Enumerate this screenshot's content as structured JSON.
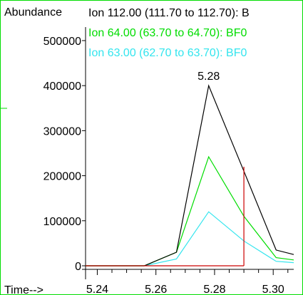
{
  "chart_data": {
    "type": "line",
    "ylabel": "Abundance",
    "xlabel": "Time-->",
    "xlim": [
      5.236,
      5.307
    ],
    "ylim": [
      0,
      530000
    ],
    "x_ticks": [
      5.24,
      5.26,
      5.28,
      5.3
    ],
    "x_tick_labels": [
      "5.24",
      "5.26",
      "5.28",
      "5.30"
    ],
    "y_ticks": [
      0,
      100000,
      200000,
      300000,
      400000,
      500000
    ],
    "y_tick_labels": [
      "0",
      "100000",
      "200000",
      "300000",
      "400000",
      "500000"
    ],
    "legend_placement": "top",
    "series": [
      {
        "name": "Ion 112.00 (111.70 to 112.70): B",
        "color": "#000000",
        "x": [
          5.236,
          5.256,
          5.267,
          5.278,
          5.29,
          5.301,
          5.307
        ],
        "y": [
          0,
          0,
          30000,
          400000,
          210000,
          35000,
          25000
        ]
      },
      {
        "name": "Ion  64.00 (63.70 to 64.70): BF0",
        "color": "#00dd00",
        "x": [
          5.236,
          5.256,
          5.267,
          5.278,
          5.29,
          5.301,
          5.307
        ],
        "y": [
          0,
          0,
          30000,
          242000,
          110000,
          18000,
          13000
        ]
      },
      {
        "name": "Ion  63.00 (62.70 to 63.70): BF0",
        "color": "#33e5ee",
        "x": [
          5.236,
          5.256,
          5.267,
          5.278,
          5.29,
          5.301,
          5.307
        ],
        "y": [
          0,
          0,
          15000,
          120000,
          55000,
          10000,
          7000
        ]
      }
    ],
    "integration": {
      "color": "#cc0000",
      "x_start": 5.236,
      "x_end": 5.29,
      "peak_top": 220000
    },
    "annotations": [
      {
        "text": "5.28",
        "x": 5.278,
        "y": 400000
      }
    ]
  },
  "colors": {
    "frame_border": "#00dd00",
    "axis": "#000000"
  }
}
